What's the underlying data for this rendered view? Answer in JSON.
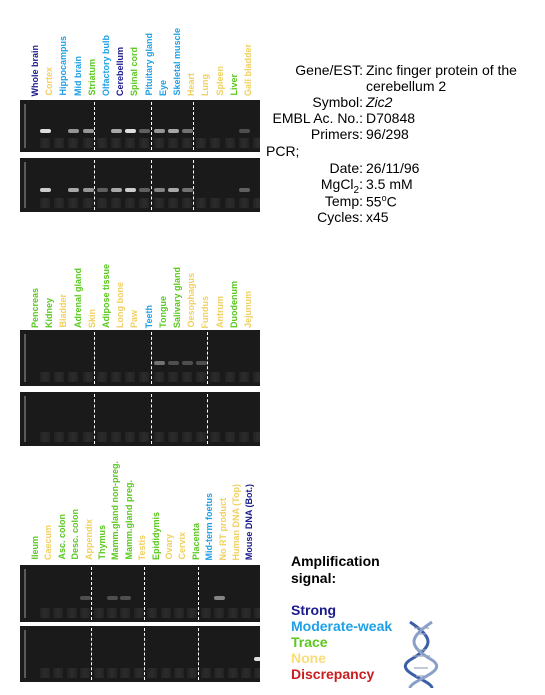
{
  "panels": [
    {
      "lanes": [
        {
          "label": "Whole brain",
          "level": "strong",
          "bands": [
            0.9,
            0.8
          ]
        },
        {
          "label": "Cortex",
          "level": "none",
          "bands": [
            0.0,
            0.0
          ]
        },
        {
          "label": "Hippocampus",
          "level": "moderate",
          "bands": [
            0.5,
            0.6
          ]
        },
        {
          "label": "Mid brain",
          "level": "moderate",
          "bands": [
            0.5,
            0.5
          ]
        },
        {
          "label": "Striatum",
          "level": "trace",
          "bands": [
            0.0,
            0.2
          ]
        },
        {
          "label": "Olfactory bulb",
          "level": "moderate",
          "bands": [
            0.6,
            0.6
          ]
        },
        {
          "label": "Cerebellum",
          "level": "strong",
          "bands": [
            0.9,
            0.8
          ]
        },
        {
          "label": "Spinal cord",
          "level": "trace",
          "bands": [
            0.2,
            0.2
          ]
        },
        {
          "label": "Pituitary gland",
          "level": "moderate",
          "bands": [
            0.5,
            0.4
          ]
        },
        {
          "label": "Eye",
          "level": "moderate",
          "bands": [
            0.6,
            0.6
          ]
        },
        {
          "label": "Skeletal muscle",
          "level": "moderate",
          "bands": [
            0.3,
            0.3
          ]
        },
        {
          "label": "Heart",
          "level": "none",
          "bands": [
            0.0,
            0.0
          ]
        },
        {
          "label": "Lung",
          "level": "none",
          "bands": [
            0.0,
            0.0
          ]
        },
        {
          "label": "Spleen",
          "level": "none",
          "bands": [
            0.0,
            0.0
          ]
        },
        {
          "label": "Liver",
          "level": "trace",
          "bands": [
            0.1,
            0.2
          ]
        },
        {
          "label": "Gall bladder",
          "level": "none",
          "bands": [
            0.0,
            0.0
          ]
        }
      ],
      "dividers": [
        4,
        8,
        11
      ]
    },
    {
      "lanes": [
        {
          "label": "Pencreas",
          "level": "trace",
          "bands": [
            0.0,
            0.0
          ]
        },
        {
          "label": "Kidney",
          "level": "trace",
          "bands": [
            0.0,
            0.0
          ]
        },
        {
          "label": "Bladder",
          "level": "none",
          "bands": [
            0.0,
            0.0
          ]
        },
        {
          "label": "Adrenal gland",
          "level": "trace",
          "bands": [
            0.0,
            0.0
          ]
        },
        {
          "label": "Skin",
          "level": "none",
          "bands": [
            0.0,
            0.0
          ]
        },
        {
          "label": "Adipose tissue",
          "level": "trace",
          "bands": [
            0.0,
            0.0
          ]
        },
        {
          "label": "Long bone",
          "level": "none",
          "bands": [
            0.0,
            0.0
          ]
        },
        {
          "label": "Paw",
          "level": "none",
          "bands": [
            0.0,
            0.0
          ]
        },
        {
          "label": "Teeth",
          "level": "moderate",
          "bands": [
            0.3,
            0.0
          ]
        },
        {
          "label": "Tongue",
          "level": "trace",
          "bands": [
            0.1,
            0.0
          ]
        },
        {
          "label": "Salivary gland",
          "level": "trace",
          "bands": [
            0.1,
            0.0
          ]
        },
        {
          "label": "Oesophagus",
          "level": "none",
          "bands": [
            0.1,
            0.0
          ]
        },
        {
          "label": "Fundus",
          "level": "none",
          "bands": [
            0.0,
            0.0
          ]
        },
        {
          "label": "Antrum",
          "level": "none",
          "bands": [
            0.0,
            0.0
          ]
        },
        {
          "label": "Duodenum",
          "level": "trace",
          "bands": [
            0.0,
            0.0
          ]
        },
        {
          "label": "Jejunum",
          "level": "none",
          "bands": [
            0.0,
            0.0
          ]
        }
      ],
      "dividers": [
        4,
        8,
        12
      ]
    },
    {
      "lanes": [
        {
          "label": "Ileum",
          "level": "trace",
          "bands": [
            0.0,
            0.0
          ]
        },
        {
          "label": "Caecum",
          "level": "none",
          "bands": [
            0.0,
            0.0
          ]
        },
        {
          "label": "Asc. colon",
          "level": "trace",
          "bands": [
            0.0,
            0.0
          ]
        },
        {
          "label": "Desc. colon",
          "level": "trace",
          "bands": [
            0.1,
            0.0
          ]
        },
        {
          "label": "Appendix",
          "level": "none",
          "bands": [
            0.0,
            0.0
          ]
        },
        {
          "label": "Thymus",
          "level": "trace",
          "bands": [
            0.1,
            0.0
          ]
        },
        {
          "label": "Mamm.gland non-preg.",
          "level": "trace",
          "bands": [
            0.1,
            0.0
          ]
        },
        {
          "label": "Mamm.gland preg.",
          "level": "trace",
          "bands": [
            0.0,
            0.0
          ]
        },
        {
          "label": "Testis",
          "level": "none",
          "bands": [
            0.0,
            0.0
          ]
        },
        {
          "label": "Epididymis",
          "level": "trace",
          "bands": [
            0.0,
            0.0
          ]
        },
        {
          "label": "Ovary",
          "level": "none",
          "bands": [
            0.0,
            0.0
          ]
        },
        {
          "label": "Cervix",
          "level": "none",
          "bands": [
            0.0,
            0.0
          ]
        },
        {
          "label": "Placenta",
          "level": "trace",
          "bands": [
            0.0,
            0.0
          ]
        },
        {
          "label": "Mid-term foetus",
          "level": "moderate",
          "bands": [
            0.4,
            0.0
          ]
        },
        {
          "label": "No RT product",
          "level": "none",
          "bands": [
            0.0,
            0.0
          ]
        },
        {
          "label": "Human DNA (Top)",
          "level": "none",
          "bands": [
            0.0,
            0.0
          ]
        },
        {
          "label": "Mouse DNA (Bot.)",
          "level": "strong",
          "bands": [
            0.0,
            0.9
          ]
        }
      ],
      "dividers": [
        4,
        8,
        12
      ]
    }
  ],
  "info": {
    "gene_key": "Gene/EST:",
    "gene_val_1": "Zinc finger protein of the",
    "gene_val_2": "cerebellum 2",
    "symbol_key": "Symbol:",
    "symbol_val": "Zic2",
    "embl_key": "EMBL Ac. No.:",
    "embl_val": "D70848",
    "primers_key": "Primers:",
    "primers_val": "96/298",
    "pcr_label": "PCR;",
    "date_key": "Date:",
    "date_val": "26/11/96",
    "mgcl_key_main": "MgCl",
    "mgcl_key_sub": "2",
    "mgcl_key_colon": ":",
    "mgcl_val": "3.5 mM",
    "temp_key": "Temp:",
    "temp_val_main": "55",
    "temp_val_sup": "o",
    "temp_val_unit": "C",
    "cycles_key": "Cycles:",
    "cycles_val": "x45"
  },
  "legend": {
    "title_1": "Amplification",
    "title_2": "signal:",
    "items": [
      {
        "label": "Strong",
        "color": "#1a1a8c"
      },
      {
        "label": "Moderate-weak",
        "color": "#1ea0e6"
      },
      {
        "label": "Trace",
        "color": "#5ac81e"
      },
      {
        "label": "None",
        "color": "#fadc78"
      },
      {
        "label": "Discrepancy",
        "color": "#c81e1e"
      }
    ]
  },
  "colors": {
    "strong": "#1a1a8c",
    "moderate": "#1ea0e6",
    "trace": "#5ac81e",
    "none": "#f0d060",
    "discrepancy": "#c81e1e"
  },
  "icons": {
    "dna": "dna-helix-icon"
  }
}
